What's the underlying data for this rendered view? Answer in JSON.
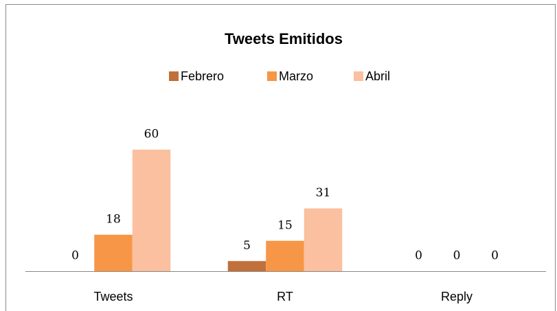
{
  "chart_data": {
    "type": "bar",
    "title": "Tweets Emitidos",
    "categories": [
      "Tweets",
      "RT",
      "Reply"
    ],
    "series": [
      {
        "name": "Febrero",
        "color": "#c0703a",
        "values": [
          0,
          5,
          0
        ]
      },
      {
        "name": "Marzo",
        "color": "#f79646",
        "values": [
          18,
          15,
          0
        ]
      },
      {
        "name": "Abril",
        "color": "#fac09f",
        "values": [
          60,
          31,
          0
        ]
      }
    ],
    "legend": "top"
  }
}
